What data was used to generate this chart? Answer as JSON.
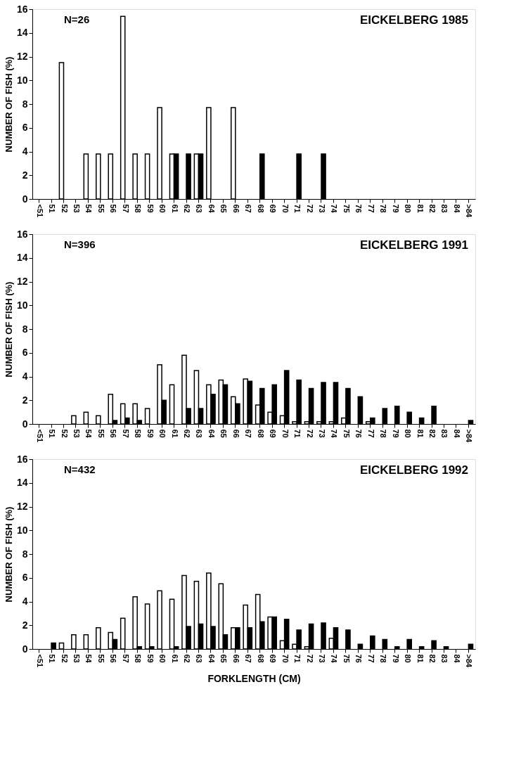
{
  "chart_data": [
    {
      "type": "bar",
      "title": "EICKELBERG 1985",
      "annotations": [
        "N=26"
      ],
      "ylabel": "NUMBER OF FISH (%)",
      "categories": [
        "<51",
        "51",
        "52",
        "53",
        "54",
        "55",
        "56",
        "57",
        "58",
        "59",
        "60",
        "61",
        "62",
        "63",
        "64",
        "65",
        "66",
        "67",
        "68",
        "69",
        "70",
        "71",
        "72",
        "73",
        "74",
        "75",
        "76",
        "77",
        "78",
        "79",
        "80",
        "81",
        "82",
        "83",
        "84",
        ">84"
      ],
      "series": [
        {
          "color": "#ffffff",
          "values": [
            null,
            null,
            11.5,
            null,
            3.8,
            3.8,
            3.8,
            15.4,
            3.8,
            3.8,
            7.7,
            3.8,
            null,
            3.8,
            7.7,
            null,
            7.7,
            null,
            null,
            null,
            null,
            null,
            null,
            null,
            null,
            null,
            null,
            null,
            null,
            null,
            null,
            null,
            null,
            null,
            null,
            null
          ]
        },
        {
          "color": "#000000",
          "values": [
            null,
            null,
            null,
            null,
            null,
            null,
            null,
            null,
            null,
            null,
            null,
            3.8,
            3.8,
            3.8,
            null,
            null,
            null,
            null,
            3.8,
            null,
            null,
            3.8,
            null,
            3.8,
            null,
            null,
            null,
            null,
            null,
            null,
            null,
            null,
            null,
            null,
            null,
            null
          ]
        }
      ],
      "ylim": [
        0,
        16
      ],
      "yticks": [
        0,
        2,
        4,
        6,
        8,
        10,
        12,
        14,
        16
      ],
      "grid": false,
      "legend": false
    },
    {
      "type": "bar",
      "title": "EICKELBERG 1991",
      "annotations": [
        "N=396"
      ],
      "ylabel": "NUMBER OF FISH (%)",
      "categories": [
        "<51",
        "51",
        "52",
        "53",
        "54",
        "55",
        "56",
        "57",
        "58",
        "59",
        "60",
        "61",
        "62",
        "63",
        "64",
        "65",
        "66",
        "67",
        "68",
        "69",
        "70",
        "71",
        "72",
        "73",
        "74",
        "75",
        "76",
        "77",
        "78",
        "79",
        "80",
        "81",
        "82",
        "83",
        "84",
        ">84"
      ],
      "series": [
        {
          "color": "#ffffff",
          "values": [
            null,
            null,
            null,
            0.7,
            1.0,
            0.7,
            2.5,
            1.7,
            1.7,
            1.3,
            5.0,
            3.3,
            5.8,
            4.5,
            3.3,
            3.7,
            2.3,
            3.8,
            1.6,
            1.0,
            0.7,
            0.2,
            0.2,
            0.2,
            0.2,
            0.5,
            null,
            0.2,
            null,
            null,
            null,
            null,
            null,
            null,
            null,
            null
          ]
        },
        {
          "color": "#000000",
          "values": [
            null,
            null,
            null,
            null,
            null,
            null,
            0.3,
            0.5,
            0.3,
            null,
            2.0,
            null,
            1.3,
            1.3,
            2.5,
            3.3,
            1.7,
            3.6,
            3.0,
            3.3,
            4.5,
            3.7,
            3.0,
            3.5,
            3.5,
            3.0,
            2.3,
            0.5,
            1.3,
            1.5,
            1.0,
            0.5,
            1.5,
            null,
            null,
            0.3
          ]
        }
      ],
      "ylim": [
        0,
        16
      ],
      "yticks": [
        0,
        2,
        4,
        6,
        8,
        10,
        12,
        14,
        16
      ],
      "grid": false,
      "legend": false
    },
    {
      "type": "bar",
      "title": "EICKELBERG 1992",
      "annotations": [
        "N=432"
      ],
      "ylabel": "NUMBER OF FISH (%)",
      "xlabel": "FORKLENGTH (CM)",
      "categories": [
        "<51",
        "51",
        "52",
        "53",
        "54",
        "55",
        "56",
        "57",
        "58",
        "59",
        "60",
        "61",
        "62",
        "63",
        "64",
        "65",
        "66",
        "67",
        "68",
        "69",
        "70",
        "71",
        "72",
        "73",
        "74",
        "75",
        "76",
        "77",
        "78",
        "79",
        "80",
        "81",
        "82",
        "83",
        "84",
        ">84"
      ],
      "series": [
        {
          "color": "#ffffff",
          "values": [
            null,
            null,
            0.5,
            1.2,
            1.2,
            1.8,
            1.4,
            2.6,
            4.4,
            3.8,
            4.9,
            4.2,
            6.2,
            5.7,
            6.4,
            5.5,
            1.8,
            3.7,
            4.6,
            2.7,
            0.7,
            0.4,
            0.2,
            null,
            0.9,
            null,
            null,
            null,
            null,
            null,
            null,
            null,
            null,
            null,
            null,
            null
          ]
        },
        {
          "color": "#000000",
          "values": [
            null,
            0.5,
            null,
            null,
            null,
            null,
            0.8,
            null,
            0.2,
            0.2,
            null,
            0.2,
            1.9,
            2.1,
            1.9,
            1.2,
            1.8,
            1.8,
            2.3,
            2.7,
            2.5,
            1.6,
            2.1,
            2.2,
            1.8,
            1.6,
            0.4,
            1.1,
            0.8,
            0.2,
            0.8,
            0.2,
            0.7,
            0.2,
            null,
            0.4
          ]
        }
      ],
      "ylim": [
        0,
        16
      ],
      "yticks": [
        0,
        2,
        4,
        6,
        8,
        10,
        12,
        14,
        16
      ],
      "grid": false,
      "legend": false
    }
  ]
}
